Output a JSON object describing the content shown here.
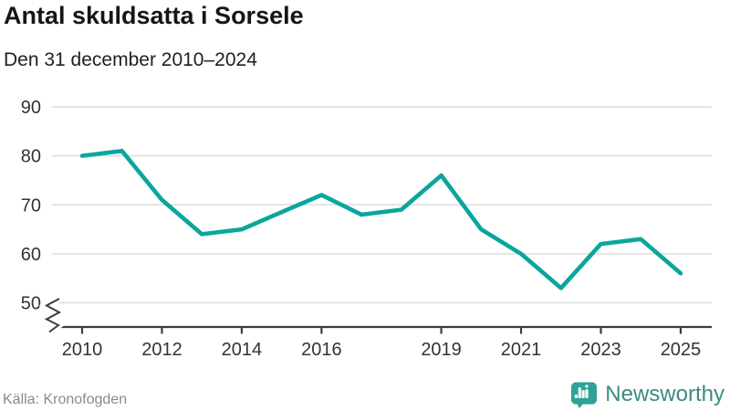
{
  "header": {
    "title": "Antal skuldsatta i Sorsele",
    "subtitle": "Den 31 december 2010–2024"
  },
  "footer": {
    "source": "Källa: Kronofogden",
    "brand_name": "Newsworthy",
    "brand_icon": "bar-chart-speech-bubble-icon"
  },
  "chart_data": {
    "type": "line",
    "title": "Antal skuldsatta i Sorsele",
    "subtitle": "Den 31 december 2010–2024",
    "series_name": "Antal skuldsatta",
    "x": [
      2010,
      2011,
      2012,
      2013,
      2014,
      2015,
      2016,
      2017,
      2018,
      2019,
      2020,
      2021,
      2022,
      2023,
      2024,
      2025
    ],
    "values": [
      80,
      81,
      71,
      64,
      65,
      68.5,
      72,
      68,
      69,
      76,
      65,
      60,
      53,
      62,
      63,
      56
    ],
    "x_axis": {
      "tick_years": [
        2010,
        2012,
        2014,
        2016,
        2019,
        2021,
        2023,
        2025
      ],
      "tick_labels": [
        "2010",
        "2012",
        "2014",
        "2016",
        "2019",
        "2021",
        "2023",
        "2025"
      ]
    },
    "y_axis": {
      "ticks": [
        50,
        60,
        70,
        80,
        90
      ],
      "tick_labels": [
        "50",
        "60",
        "70",
        "80",
        "90"
      ],
      "range": [
        50,
        90
      ],
      "axis_break_below": 50
    },
    "grid": "horizontal",
    "legend": "none",
    "colors": {
      "line": "#0aa69d",
      "gridline": "#dcdcdc",
      "axis": "#3d3d3d",
      "tick_label": "#333333"
    }
  },
  "brand_colors": {
    "icon": "#2ea296",
    "wordmark": "#3a8b82"
  }
}
